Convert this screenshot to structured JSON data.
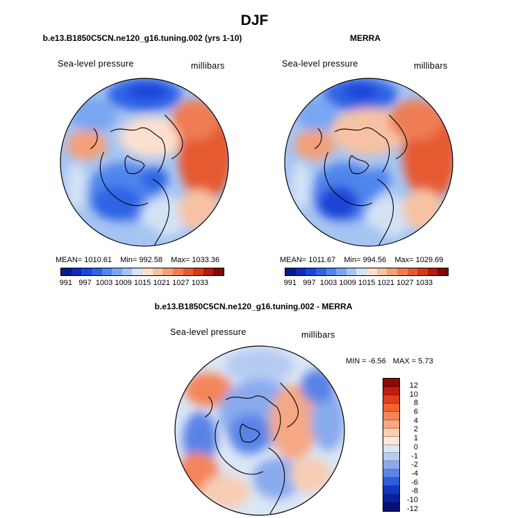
{
  "title": "DJF",
  "panels": [
    {
      "title": "b.e13.B1850C5CN.ne120_g16.tuning.002 (yrs 1-10)",
      "variable": "Sea-level pressure",
      "units": "millibars",
      "stats": {
        "mean": "MEAN= 1010.61",
        "min": "Min= 992.58",
        "max": "Max= 1033.36"
      }
    },
    {
      "title": "MERRA",
      "variable": "Sea-level pressure",
      "units": "millibars",
      "stats": {
        "mean": "MEAN= 1011.67",
        "min": "Min= 994.56",
        "max": "Max= 1029.69"
      }
    },
    {
      "title": "b.e13.B1850C5CN.ne120_g16.tuning.002 - MERRA",
      "variable": "Sea-level pressure",
      "units": "millibars",
      "stats": {
        "min": "MIN =   -6.56",
        "max": "MAX =    5.73"
      }
    }
  ],
  "abs_colorbar": {
    "labels": [
      "991",
      "997",
      "1003",
      "1009",
      "1015",
      "1021",
      "1027",
      "1033"
    ],
    "colors": [
      "#0a1a8c",
      "#0d2bb8",
      "#1a45d8",
      "#2f63e6",
      "#4f85ec",
      "#79a6f0",
      "#a6c4f2",
      "#d3e2f6",
      "#fbe0cf",
      "#f7c2a4",
      "#f3a07a",
      "#ee7d52",
      "#e65a30",
      "#d43a1a",
      "#b01d0e",
      "#7e0b06"
    ]
  },
  "diff_colorbar": {
    "labels": [
      "12",
      "10",
      "8",
      "6",
      "4",
      "2",
      "1",
      "0",
      "-1",
      "-2",
      "-4",
      "-6",
      "-8",
      "-10",
      "-12"
    ],
    "colors": [
      "#8a0a06",
      "#c21d0d",
      "#e23d1d",
      "#f26233",
      "#f4855a",
      "#f5a883",
      "#f7cdb4",
      "#fde8da",
      "#dbe6f6",
      "#b6cbf1",
      "#8aaaee",
      "#5a83e6",
      "#2f5cda",
      "#1237c4",
      "#0c1fa0",
      "#081276"
    ]
  }
}
